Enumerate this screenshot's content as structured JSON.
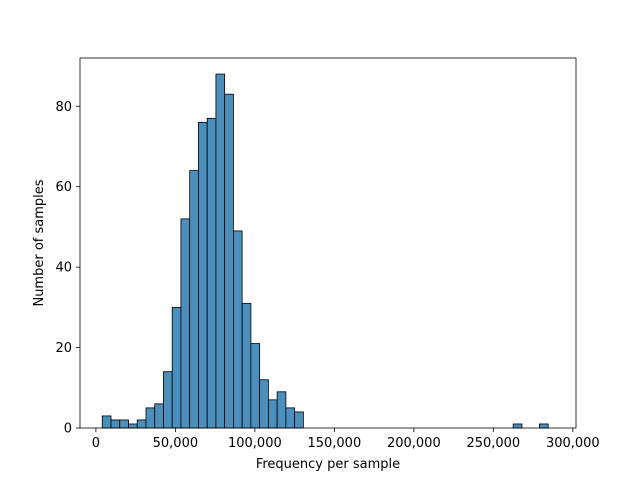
{
  "chart_data": {
    "type": "histogram",
    "title": "",
    "xlabel": "Frequency per sample",
    "ylabel": "Number of samples",
    "xlim": [
      -10000,
      302000
    ],
    "ylim": [
      0,
      92
    ],
    "x_ticks": [
      0,
      50000,
      100000,
      150000,
      200000,
      250000,
      300000
    ],
    "x_tick_labels": [
      "0",
      "50,000",
      "100,000",
      "150,000",
      "200,000",
      "250,000",
      "300,000"
    ],
    "y_ticks": [
      0,
      20,
      40,
      60,
      80
    ],
    "y_tick_labels": [
      "0",
      "20",
      "40",
      "60",
      "80"
    ],
    "grid": false,
    "bar_color": "#4c8fbd",
    "bin_edges": [
      4000,
      9500,
      15000,
      20500,
      26000,
      31500,
      37000,
      42500,
      48000,
      53500,
      59000,
      64500,
      70000,
      75500,
      81000,
      86500,
      92000,
      97500,
      103000,
      108500,
      114000,
      119500,
      125000,
      130500,
      136000,
      141500,
      147000,
      152500,
      158000,
      163500,
      169000,
      174500,
      180000,
      185500,
      191000,
      196500,
      202000,
      207500,
      213000,
      218500,
      224000,
      229500,
      235000,
      240500,
      246000,
      251500,
      257000,
      262500,
      268000,
      273500,
      279000,
      284500,
      290000
    ],
    "counts": [
      3,
      2,
      2,
      1,
      2,
      5,
      6,
      14,
      30,
      52,
      64,
      76,
      77,
      88,
      83,
      49,
      31,
      21,
      12,
      7,
      9,
      5,
      4,
      0,
      0,
      0,
      0,
      0,
      0,
      0,
      0,
      0,
      0,
      0,
      0,
      0,
      0,
      0,
      0,
      0,
      0,
      0,
      0,
      0,
      0,
      0,
      0,
      1,
      0,
      0,
      1,
      0
    ]
  }
}
